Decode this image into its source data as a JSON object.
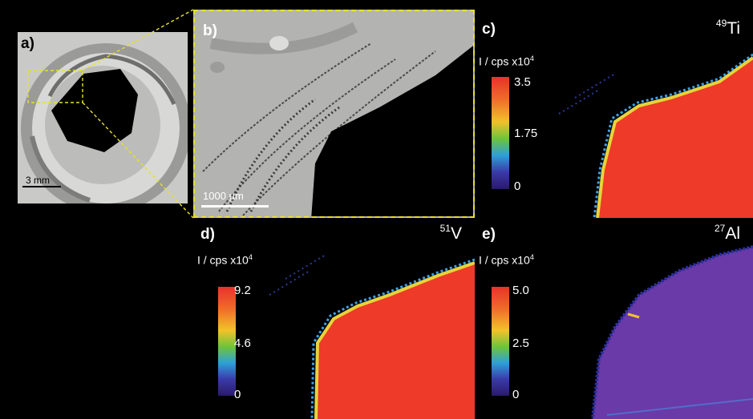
{
  "panels": {
    "a": {
      "label": "a)",
      "scalebar": "3 mm"
    },
    "b": {
      "label": "b)",
      "scalebar": "1000 µm"
    },
    "c": {
      "label": "c)",
      "isotope_mass": "49",
      "element": "Ti",
      "unit_prefix": "I / cps x10",
      "unit_exp": "4",
      "ticks": [
        "3.5",
        "1.75",
        "0"
      ],
      "scale_max": 3.5
    },
    "d": {
      "label": "d)",
      "isotope_mass": "51",
      "element": "V",
      "unit_prefix": "I / cps x10",
      "unit_exp": "4",
      "ticks": [
        "9.2",
        "4.6",
        "0"
      ],
      "scale_max": 9.2
    },
    "e": {
      "label": "e)",
      "isotope_mass": "27",
      "element": "Al",
      "unit_prefix": "I / cps x10",
      "unit_exp": "4",
      "ticks": [
        "5.0",
        "2.5",
        "0"
      ],
      "scale_max": 5.0
    }
  },
  "colors": {
    "highlight": "#e6e22a",
    "signal_high": "#ee3a28",
    "signal_mid": "#7a3fb5"
  }
}
